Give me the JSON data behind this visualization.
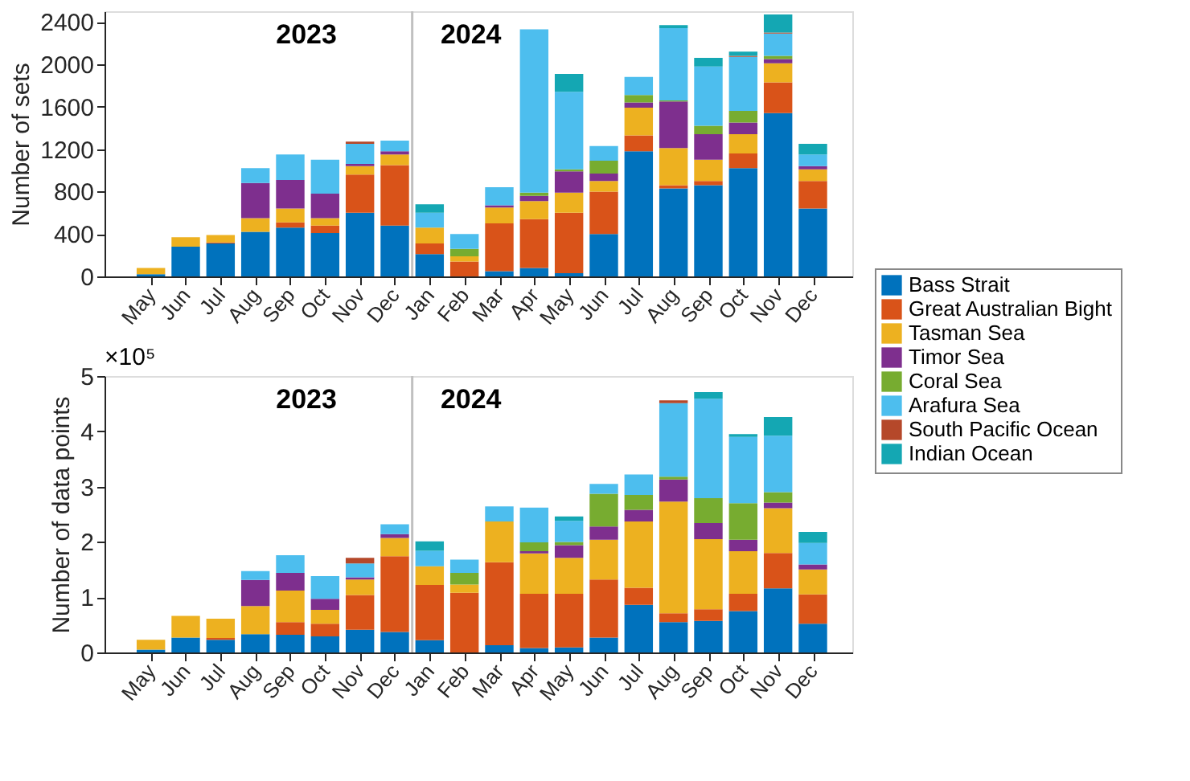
{
  "chart_data": [
    {
      "type": "bar",
      "stacked": true,
      "ylabel": "Number of sets",
      "ylim": [
        0,
        2500
      ],
      "yticks": [
        0,
        400,
        800,
        1200,
        1600,
        2000,
        2400
      ],
      "grid": false,
      "legend": "bottom right",
      "categories": [
        "May",
        "Jun",
        "Jul",
        "Aug",
        "Sep",
        "Oct",
        "Nov",
        "Dec",
        "Jan",
        "Feb",
        "Mar",
        "Apr",
        "May",
        "Jun",
        "Jul",
        "Aug",
        "Sep",
        "Oct",
        "Nov",
        "Dec"
      ],
      "annotations": [
        "2023",
        "2024"
      ],
      "series": [
        {
          "name": "Bass Strait",
          "color": "#0072bd",
          "values": [
            20,
            280,
            310,
            420,
            460,
            410,
            600,
            480,
            210,
            null,
            50,
            80,
            30,
            400,
            1180,
            830,
            860,
            1020,
            1540,
            640
          ]
        },
        {
          "name": "Great Australian Bight",
          "color": "#d95319",
          "values": [
            null,
            null,
            10,
            null,
            50,
            70,
            360,
            570,
            100,
            140,
            450,
            460,
            570,
            400,
            150,
            30,
            40,
            140,
            290,
            260
          ]
        },
        {
          "name": "Tasman Sea",
          "color": "#edb120",
          "values": [
            60,
            90,
            70,
            130,
            130,
            70,
            80,
            100,
            150,
            50,
            150,
            170,
            190,
            100,
            260,
            350,
            200,
            180,
            180,
            110
          ]
        },
        {
          "name": "Timor Sea",
          "color": "#7e2f8e",
          "values": [
            null,
            null,
            null,
            330,
            270,
            230,
            20,
            30,
            null,
            null,
            20,
            50,
            200,
            70,
            50,
            440,
            240,
            110,
            40,
            30
          ]
        },
        {
          "name": "Coral Sea",
          "color": "#77ac30",
          "values": [
            null,
            null,
            null,
            null,
            null,
            null,
            null,
            null,
            null,
            70,
            null,
            30,
            20,
            120,
            70,
            10,
            80,
            110,
            30,
            null
          ]
        },
        {
          "name": "Arafura Sea",
          "color": "#4dbeee",
          "values": [
            null,
            null,
            null,
            140,
            240,
            320,
            190,
            100,
            140,
            140,
            170,
            1540,
            730,
            140,
            170,
            680,
            560,
            510,
            210,
            110
          ]
        },
        {
          "name": "South Pacific Ocean",
          "color": "#b5482a",
          "values": [
            null,
            null,
            null,
            null,
            null,
            null,
            20,
            null,
            null,
            null,
            null,
            null,
            null,
            null,
            null,
            null,
            null,
            10,
            10,
            null
          ]
        },
        {
          "name": "Indian Ocean",
          "color": "#14a7b3",
          "values": [
            null,
            null,
            null,
            null,
            null,
            null,
            null,
            null,
            80,
            null,
            null,
            null,
            170,
            null,
            null,
            30,
            80,
            40,
            170,
            100
          ]
        }
      ]
    },
    {
      "type": "bar",
      "stacked": true,
      "ylabel": "Number of data points",
      "ylim": [
        0,
        5
      ],
      "yticks": [
        0,
        1,
        2,
        3,
        4,
        5
      ],
      "grid": false,
      "categories": [
        "May",
        "Jun",
        "Jul",
        "Aug",
        "Sep",
        "Oct",
        "Nov",
        "Dec",
        "Jan",
        "Feb",
        "Mar",
        "Apr",
        "May",
        "Jun",
        "Jul",
        "Aug",
        "Sep",
        "Oct",
        "Nov",
        "Dec"
      ],
      "annotations": [
        "2023",
        "2024",
        "×10⁵"
      ],
      "series": [
        {
          "color": "#0072bd",
          "values": [
            0.05,
            0.27,
            0.23,
            0.33,
            0.32,
            0.29,
            0.41,
            0.37,
            0.22,
            null,
            0.13,
            0.08,
            0.09,
            0.27,
            0.86,
            0.55,
            0.57,
            0.75,
            1.16,
            0.52
          ]
        },
        {
          "color": "#d95319",
          "values": [
            null,
            null,
            0.03,
            null,
            0.23,
            0.23,
            0.63,
            1.37,
            1.0,
            1.08,
            1.5,
            0.98,
            0.97,
            1.05,
            0.31,
            0.16,
            0.21,
            0.31,
            0.64,
            0.53
          ]
        },
        {
          "color": "#edb120",
          "values": [
            0.18,
            0.39,
            0.35,
            0.51,
            0.57,
            0.25,
            0.28,
            0.33,
            0.34,
            0.15,
            0.74,
            0.73,
            0.65,
            0.72,
            1.2,
            2.02,
            1.27,
            0.77,
            0.81,
            0.45
          ]
        },
        {
          "color": "#7e2f8e",
          "values": [
            null,
            null,
            null,
            0.47,
            0.32,
            0.2,
            0.04,
            0.07,
            null,
            null,
            null,
            0.04,
            0.23,
            0.24,
            0.21,
            0.4,
            0.29,
            0.21,
            0.1,
            0.09
          ]
        },
        {
          "color": "#77ac30",
          "values": [
            null,
            null,
            null,
            null,
            null,
            null,
            null,
            null,
            null,
            0.21,
            null,
            0.16,
            0.06,
            0.59,
            0.27,
            0.05,
            0.45,
            0.66,
            0.19,
            null
          ]
        },
        {
          "color": "#4dbeee",
          "values": [
            null,
            null,
            null,
            0.16,
            0.32,
            0.41,
            0.25,
            0.18,
            0.28,
            0.24,
            0.27,
            0.63,
            0.38,
            0.18,
            0.37,
            1.33,
            1.8,
            1.2,
            1.02,
            0.39
          ]
        },
        {
          "color": "#b5482a",
          "values": [
            null,
            null,
            null,
            null,
            null,
            null,
            0.1,
            null,
            null,
            null,
            null,
            null,
            null,
            null,
            null,
            0.05,
            null,
            null,
            null,
            null
          ]
        },
        {
          "color": "#14a7b3",
          "values": [
            null,
            null,
            null,
            null,
            null,
            null,
            null,
            null,
            0.17,
            null,
            null,
            null,
            0.08,
            null,
            null,
            null,
            0.12,
            0.05,
            0.34,
            0.2
          ]
        }
      ]
    }
  ]
}
